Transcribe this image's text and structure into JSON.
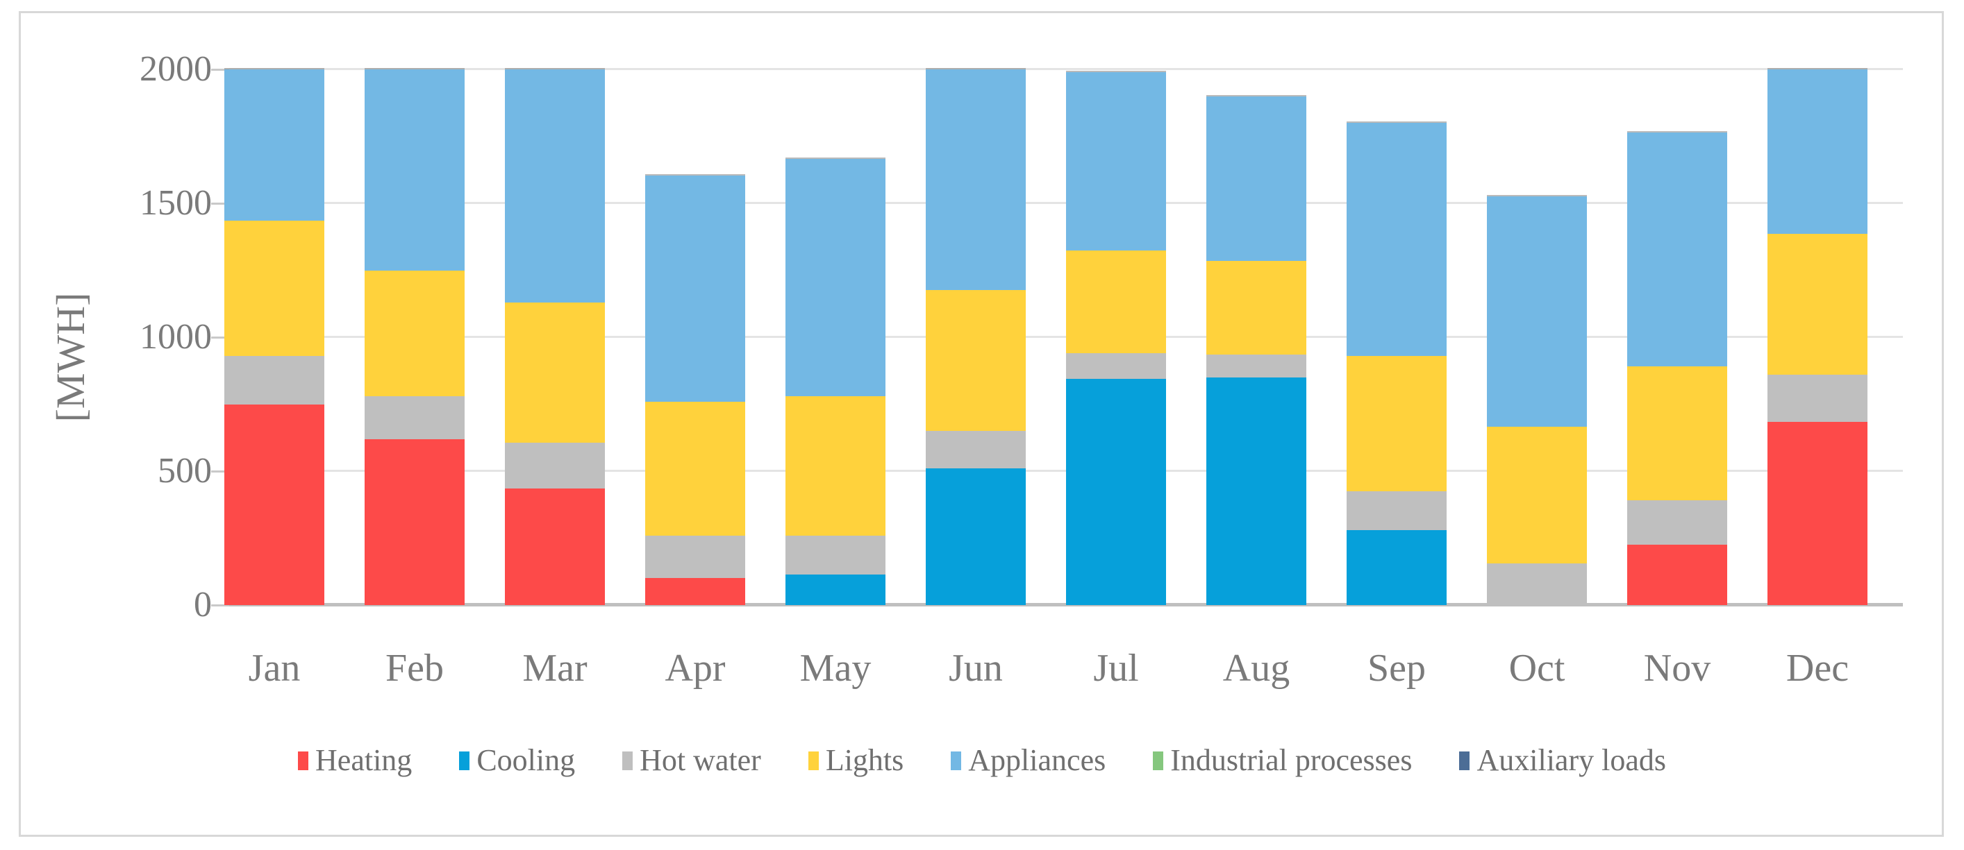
{
  "figure": {
    "background": "#ffffff",
    "border_color": "#d8d8d8",
    "gridline_color": "#e4e4e4",
    "axis_line_color": "#bfbfbf",
    "label_color": "#7a7a7a"
  },
  "chart_data": {
    "type": "bar",
    "stacked": true,
    "title": "",
    "xlabel": "",
    "ylabel": "[MWH]",
    "ylim": [
      0,
      2000
    ],
    "ytick_labels": [
      "0",
      "500",
      "1000",
      "1500",
      "2000"
    ],
    "yticks": [
      0,
      500,
      1000,
      1500,
      2000
    ],
    "grid": true,
    "legend_position": "bottom",
    "categories": [
      "Jan",
      "Feb",
      "Mar",
      "Apr",
      "May",
      "Jun",
      "Jul",
      "Aug",
      "Sep",
      "Oct",
      "Nov",
      "Dec"
    ],
    "series": [
      {
        "name": "Heating",
        "color": "#fd4a49",
        "values": [
          750,
          620,
          435,
          100,
          0,
          0,
          0,
          0,
          0,
          0,
          225,
          685
        ]
      },
      {
        "name": "Cooling",
        "color": "#06a0da",
        "values": [
          0,
          0,
          0,
          0,
          115,
          510,
          845,
          850,
          280,
          0,
          0,
          0
        ]
      },
      {
        "name": "Hot water",
        "color": "#bfbfbf",
        "values": [
          180,
          160,
          170,
          160,
          145,
          140,
          95,
          85,
          145,
          155,
          165,
          175
        ]
      },
      {
        "name": "Lights",
        "color": "#ffd23c",
        "values": [
          505,
          470,
          525,
          500,
          520,
          525,
          385,
          350,
          505,
          510,
          500,
          525
        ]
      },
      {
        "name": "Appliances",
        "color": "#73b8e4",
        "values": [
          565,
          750,
          870,
          845,
          885,
          825,
          665,
          615,
          870,
          860,
          875,
          615
        ]
      },
      {
        "name": "Industrial processes",
        "color": "#85c77e",
        "values": [
          0,
          0,
          0,
          0,
          0,
          0,
          0,
          0,
          0,
          0,
          0,
          0
        ]
      },
      {
        "name": "Auxiliary loads",
        "color": "#4c6d96",
        "values": [
          0,
          0,
          0,
          0,
          0,
          0,
          0,
          0,
          0,
          0,
          0,
          0
        ]
      }
    ],
    "monthly_totals": [
      2000,
      2000,
      2000,
      1605,
      1665,
      2000,
      1990,
      1900,
      1800,
      1525,
      1765,
      2000
    ]
  }
}
